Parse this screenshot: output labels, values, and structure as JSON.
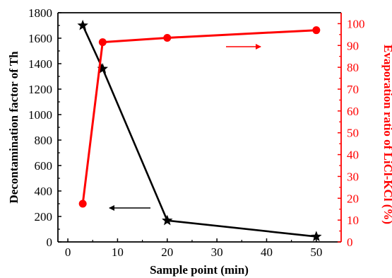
{
  "chart_data": {
    "type": "line",
    "xlabel": "Sample point (min)",
    "ylabel_left": "Decontamination factor of Th",
    "ylabel_right": "Evaporation ratio of LiCl-KCl (%)",
    "xlim": [
      -2,
      55
    ],
    "ylim_left": [
      0,
      1800
    ],
    "ylim_right": [
      0,
      105
    ],
    "xticks": [
      0,
      10,
      20,
      30,
      40,
      50
    ],
    "yticks_left": [
      0,
      200,
      400,
      600,
      800,
      1000,
      1200,
      1400,
      1600,
      1800
    ],
    "yticks_right": [
      0,
      10,
      20,
      30,
      40,
      50,
      60,
      70,
      80,
      90,
      100
    ],
    "series": [
      {
        "axis": "left",
        "marker": "star",
        "color": "#000000",
        "x": [
          3,
          7,
          20,
          50
        ],
        "y": [
          1700,
          1360,
          168,
          42
        ]
      },
      {
        "axis": "right",
        "marker": "circle",
        "color": "#ff0000",
        "x": [
          3,
          7,
          20,
          50
        ],
        "y": [
          17.5,
          91.5,
          93.5,
          97
        ]
      }
    ],
    "annotations": [
      {
        "type": "arrow",
        "direction": "left",
        "color": "#000000",
        "meaning": "left-axis series"
      },
      {
        "type": "arrow",
        "direction": "right",
        "color": "#ff0000",
        "meaning": "right-axis series"
      }
    ],
    "grid": false,
    "legend": "none"
  }
}
